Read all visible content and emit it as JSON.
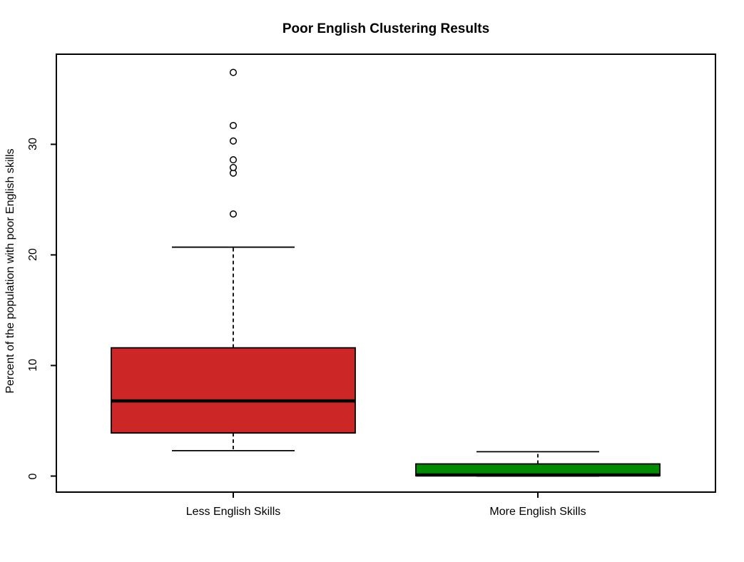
{
  "chart_data": {
    "type": "boxplot",
    "title": "Poor English Clustering Results",
    "ylabel": "Percent of the population with poor English skills",
    "xlabel": "",
    "ylim": [
      -1.45,
      38.15
    ],
    "yticks": [
      0,
      10,
      20,
      30
    ],
    "grid": false,
    "legend": "none",
    "background_color": "#FFFFFF",
    "axis_color": "#000000",
    "groups": [
      {
        "label": "Less English Skills",
        "color": "#CD2626",
        "stats": {
          "whisker_low": 2.3,
          "q1": 3.9,
          "median": 6.8,
          "q3": 11.6,
          "whisker_high": 20.7
        },
        "outliers": [
          23.7,
          27.4,
          27.9,
          28.6,
          30.3,
          31.7,
          36.5
        ]
      },
      {
        "label": "More English Skills",
        "color": "#008B00",
        "stats": {
          "whisker_low": 0.0,
          "q1": 0.03,
          "median": 0.1,
          "q3": 1.1,
          "whisker_high": 2.2
        },
        "outliers": []
      }
    ]
  }
}
